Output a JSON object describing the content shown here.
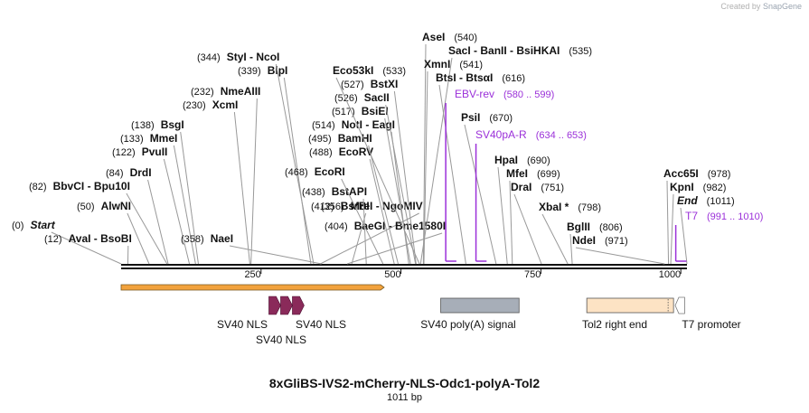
{
  "header": {
    "credit_prefix": "Created by",
    "credit_brand": "SnapGene"
  },
  "map": {
    "title": "8xGliBS-IVS2-mCherry-NLS-Odc1-polyA-Tol2",
    "length_label": "1011 bp",
    "total_bp": 1011
  },
  "ruler": {
    "ticks": [
      250,
      500,
      750,
      1000
    ]
  },
  "sites": [
    {
      "pos": 0,
      "pos_label": "(0)",
      "name": "Start",
      "italic": true
    },
    {
      "pos": 12,
      "pos_label": "(12)",
      "name": "AvaI  -  BsoBI"
    },
    {
      "pos": 50,
      "pos_label": "(50)",
      "name": "AlwNI"
    },
    {
      "pos": 82,
      "pos_label": "(82)",
      "name": "BbvCI  -  Bpu10I"
    },
    {
      "pos": 84,
      "pos_label": "(84)",
      "name": "DrdI"
    },
    {
      "pos": 122,
      "pos_label": "(122)",
      "name": "PvuII"
    },
    {
      "pos": 133,
      "pos_label": "(133)",
      "name": "MmeI"
    },
    {
      "pos": 138,
      "pos_label": "(138)",
      "name": "BsgI"
    },
    {
      "pos": 230,
      "pos_label": "(230)",
      "name": "XcmI"
    },
    {
      "pos": 232,
      "pos_label": "(232)",
      "name": "NmeAIII"
    },
    {
      "pos": 339,
      "pos_label": "(339)",
      "name": "BlpI"
    },
    {
      "pos": 344,
      "pos_label": "(344)",
      "name": "StyI  -  NcoI"
    },
    {
      "pos": 356,
      "pos_label": "(356)",
      "name": "MreI  -  NgoMIV"
    },
    {
      "pos": 358,
      "pos_label": "(358)",
      "name": "NaeI"
    },
    {
      "pos": 404,
      "pos_label": "(404)",
      "name": "BaeGI  -  Bme1580I"
    },
    {
      "pos": 412,
      "pos_label": "(412)",
      "name": "BsrBI"
    },
    {
      "pos": 438,
      "pos_label": "(438)",
      "name": "BstAPI"
    },
    {
      "pos": 468,
      "pos_label": "(468)",
      "name": "EcoRI"
    },
    {
      "pos": 488,
      "pos_label": "(488)",
      "name": "EcoRV"
    },
    {
      "pos": 495,
      "pos_label": "(495)",
      "name": "BamHI"
    },
    {
      "pos": 514,
      "pos_label": "(514)",
      "name": "NotI  -  EagI"
    },
    {
      "pos": 517,
      "pos_label": "(517)",
      "name": "BsiEI"
    },
    {
      "pos": 526,
      "pos_label": "(526)",
      "name": "SacII"
    },
    {
      "pos": 527,
      "pos_label": "(527)",
      "name": "BstXI"
    },
    {
      "pos": 533,
      "pos_label": "(533)",
      "name": "Eco53kI"
    },
    {
      "pos": 535,
      "pos_label": "(535)",
      "name": "SacI  -  BanII  -  BsiHKAI"
    },
    {
      "pos": 540,
      "pos_label": "(540)",
      "name": "AseI"
    },
    {
      "pos": 541,
      "pos_label": "(541)",
      "name": "XmnI"
    },
    {
      "pos": 616,
      "pos_label": "(616)",
      "name": "BtsI  -  BtsαI"
    },
    {
      "pos": 670,
      "pos_label": "(670)",
      "name": "PsiI"
    },
    {
      "pos": 690,
      "pos_label": "(690)",
      "name": "HpaI"
    },
    {
      "pos": 699,
      "pos_label": "(699)",
      "name": "MfeI"
    },
    {
      "pos": 751,
      "pos_label": "(751)",
      "name": "DraI"
    },
    {
      "pos": 798,
      "pos_label": "(798)",
      "name": "XbaI *"
    },
    {
      "pos": 806,
      "pos_label": "(806)",
      "name": "BglII"
    },
    {
      "pos": 971,
      "pos_label": "(971)",
      "name": "NdeI"
    },
    {
      "pos": 978,
      "pos_label": "(978)",
      "name": "Acc65I"
    },
    {
      "pos": 982,
      "pos_label": "(982)",
      "name": "KpnI"
    },
    {
      "pos": 1011,
      "pos_label": "(1011)",
      "name": "End",
      "italic": true
    }
  ],
  "primers": [
    {
      "name": "EBV-rev",
      "range_label": "(580 .. 599)",
      "start": 580,
      "end": 599
    },
    {
      "name": "SV40pA-R",
      "range_label": "(634 .. 653)",
      "start": 634,
      "end": 653
    },
    {
      "name": "T7",
      "range_label": "(991 .. 1010)",
      "start": 991,
      "end": 1010
    }
  ],
  "features": [
    {
      "name": "",
      "type": "orf",
      "start": 0,
      "end": 470,
      "color": "#f2a23c"
    },
    {
      "name": "SV40 NLS",
      "type": "nls",
      "start": 264,
      "end": 285,
      "color": "#8a2a5a"
    },
    {
      "name": "SV40 NLS",
      "type": "nls",
      "start": 285,
      "end": 306,
      "color": "#8a2a5a"
    },
    {
      "name": "SV40 NLS",
      "type": "nls",
      "start": 306,
      "end": 327,
      "color": "#8a2a5a"
    },
    {
      "name": "SV40 poly(A) signal",
      "type": "polyA",
      "start": 571,
      "end": 711,
      "color": "#a7aeb8"
    },
    {
      "name": "Tol2 right end",
      "type": "tol2",
      "start": 832,
      "end": 987,
      "color": "#fde3c4"
    },
    {
      "name": "T7 promoter",
      "type": "promoter",
      "start": 990,
      "end": 1010,
      "color": "#ffffff"
    }
  ],
  "colors": {
    "backbone": "#111111",
    "primer": "#9b30d9",
    "site_line": "#999999",
    "text": "#111111"
  }
}
